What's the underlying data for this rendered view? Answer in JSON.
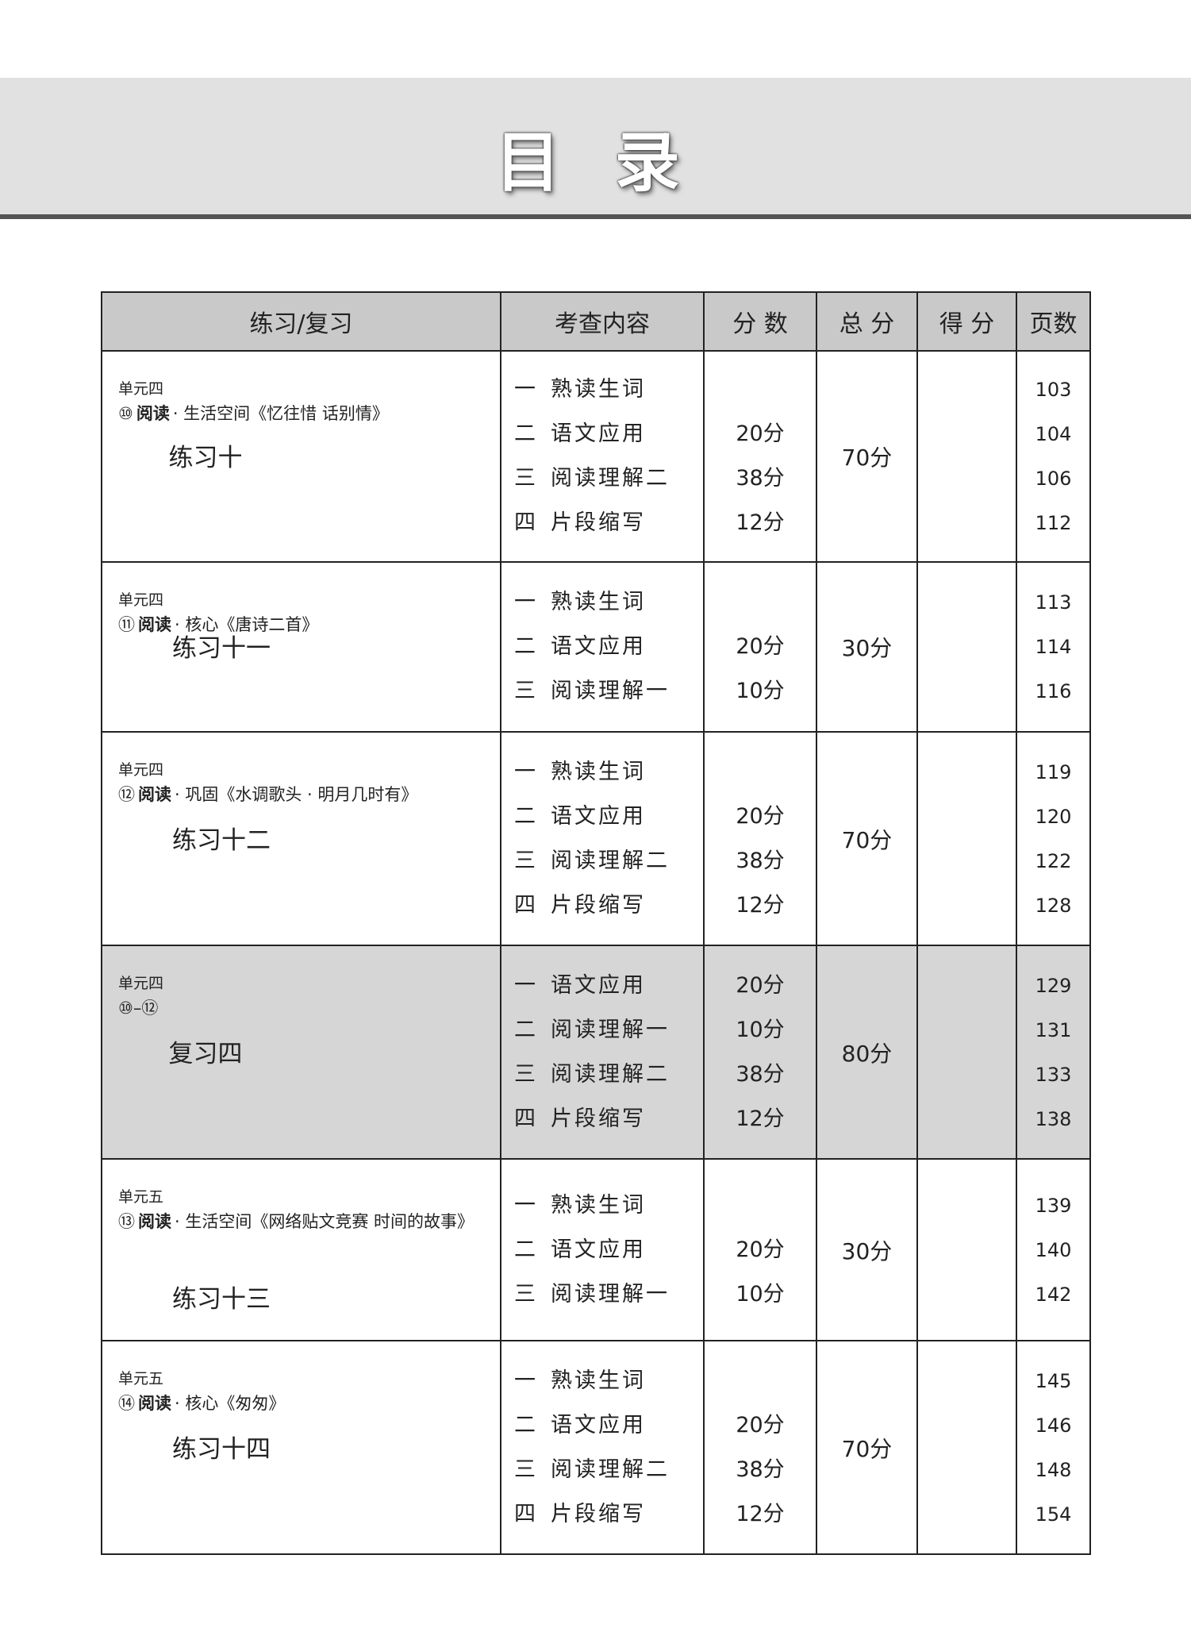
{
  "header": {
    "title": "目 录"
  },
  "table": {
    "columns": [
      "练习/复习",
      "考查内容",
      "分 数",
      "总 分",
      "得 分",
      "页数"
    ],
    "rows": [
      {
        "unit": "单元四",
        "lesson": {
          "num": "⑩",
          "kind": "阅读",
          "text": "· 生活空间《忆往惜  话别情》"
        },
        "title": "练习十",
        "total": "70分",
        "items": [
          {
            "no": "一",
            "content": "熟读生词",
            "page": 103
          },
          {
            "no": "二",
            "content": "语文应用",
            "score": "20分",
            "page": 104
          },
          {
            "no": "三",
            "content": "阅读理解二",
            "score": "38分",
            "page": 106
          },
          {
            "no": "四",
            "content": "片段缩写",
            "score": "12分",
            "page": 112
          }
        ]
      },
      {
        "unit": "单元四",
        "lesson": {
          "num": "⑪",
          "kind": "阅读",
          "text": "· 核心《唐诗二首》"
        },
        "title": "练习十一",
        "total": "30分",
        "items": [
          {
            "no": "一",
            "content": "熟读生词",
            "page": 113
          },
          {
            "no": "二",
            "content": "语文应用",
            "score": "20分",
            "page": 114
          },
          {
            "no": "三",
            "content": "阅读理解一",
            "score": "10分",
            "page": 116
          }
        ]
      },
      {
        "unit": "单元四",
        "lesson": {
          "num": "⑫",
          "kind": "阅读",
          "text": "· 巩固《水调歌头 · 明月几时有》"
        },
        "title": "练习十二",
        "total": "70分",
        "items": [
          {
            "no": "一",
            "content": "熟读生词",
            "page": 119
          },
          {
            "no": "二",
            "content": "语文应用",
            "score": "20分",
            "page": 120
          },
          {
            "no": "三",
            "content": "阅读理解二",
            "score": "38分",
            "page": 122
          },
          {
            "no": "四",
            "content": "片段缩写",
            "score": "12分",
            "page": 128
          }
        ]
      },
      {
        "unit": "单元四",
        "lesson": {
          "num": "⑩–⑫"
        },
        "title": "复习四",
        "total": "80分",
        "shaded": true,
        "items": [
          {
            "no": "一",
            "content": "语文应用",
            "score": "20分",
            "page": 129
          },
          {
            "no": "二",
            "content": "阅读理解一",
            "score": "10分",
            "page": 131
          },
          {
            "no": "三",
            "content": "阅读理解二",
            "score": "38分",
            "page": 133
          },
          {
            "no": "四",
            "content": "片段缩写",
            "score": "12分",
            "page": 138
          }
        ]
      },
      {
        "unit": "单元五",
        "lesson": {
          "num": "⑬",
          "kind": "阅读",
          "text": "· 生活空间《网络贴文竞赛  时间的故事》"
        },
        "title": "练习十三",
        "total": "30分",
        "items": [
          {
            "no": "一",
            "content": "熟读生词",
            "page": 139
          },
          {
            "no": "二",
            "content": "语文应用",
            "score": "20分",
            "page": 140
          },
          {
            "no": "三",
            "content": "阅读理解一",
            "score": "10分",
            "page": 142
          }
        ]
      },
      {
        "unit": "单元五",
        "lesson": {
          "num": "⑭",
          "kind": "阅读",
          "text": "· 核心《匆匆》"
        },
        "title": "练习十四",
        "total": "70分",
        "items": [
          {
            "no": "一",
            "content": "熟读生词",
            "page": 145
          },
          {
            "no": "二",
            "content": "语文应用",
            "score": "20分",
            "page": 146
          },
          {
            "no": "三",
            "content": "阅读理解二",
            "score": "38分",
            "page": 148
          },
          {
            "no": "四",
            "content": "片段缩写",
            "score": "12分",
            "page": 154
          }
        ]
      }
    ]
  }
}
